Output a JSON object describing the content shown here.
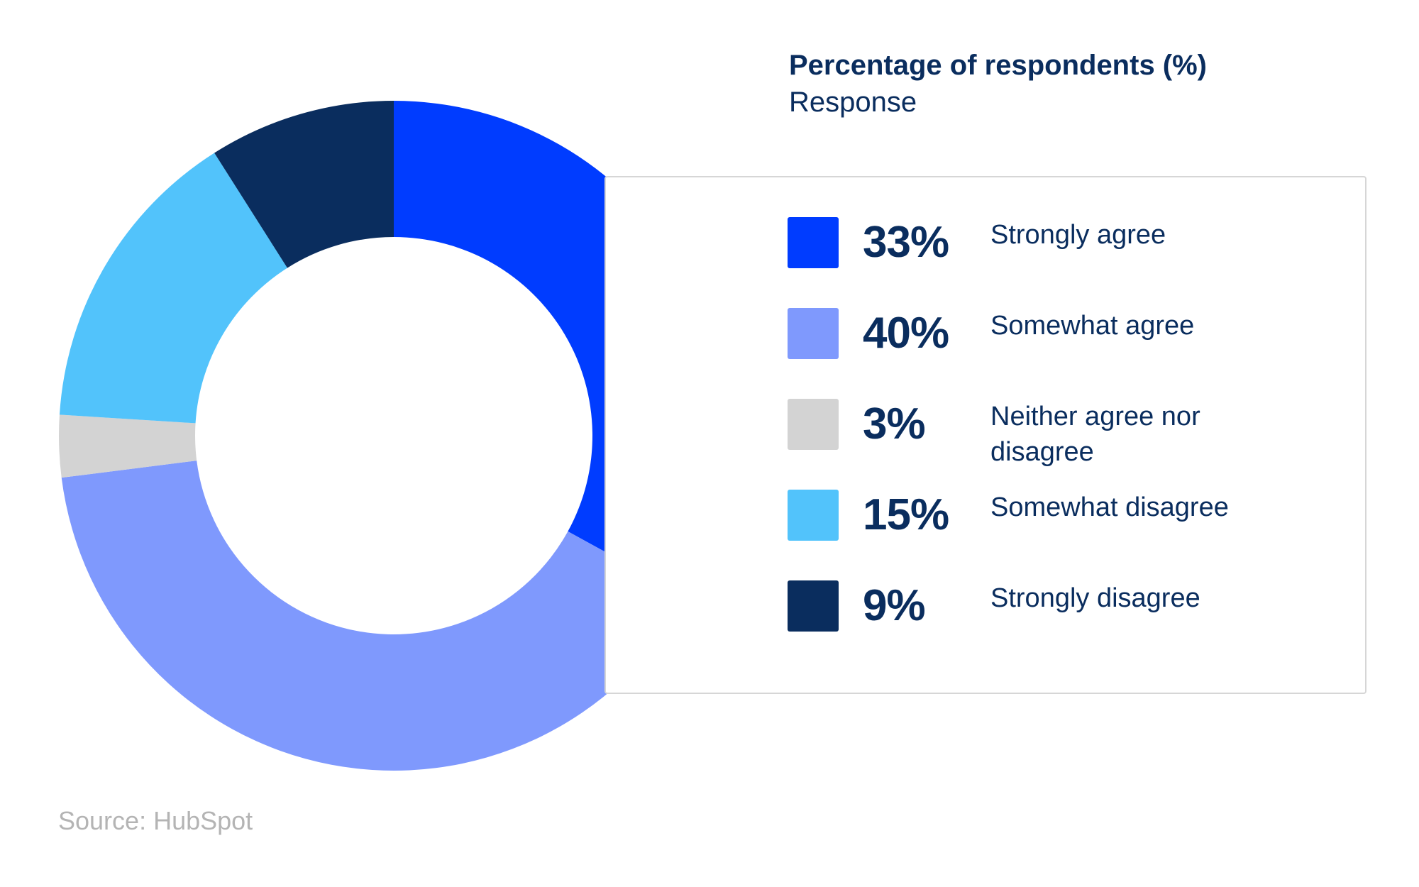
{
  "chart_data": {
    "type": "pie",
    "title": "Percentage of respondents (%)",
    "subtitle": "Response",
    "donut": true,
    "legend_position": "right",
    "categories": [
      "Strongly agree",
      "Somewhat agree",
      "Neither agree nor disagree",
      "Somewhat disagree",
      "Strongly disagree"
    ],
    "values": [
      33,
      40,
      3,
      15,
      9
    ],
    "value_labels": [
      "33%",
      "40%",
      "3%",
      "15%",
      "9%"
    ],
    "colors": [
      "#003cff",
      "#7f99fd",
      "#d3d3d3",
      "#52c3fb",
      "#0a2d5e"
    ]
  },
  "source": "Source: HubSpot"
}
